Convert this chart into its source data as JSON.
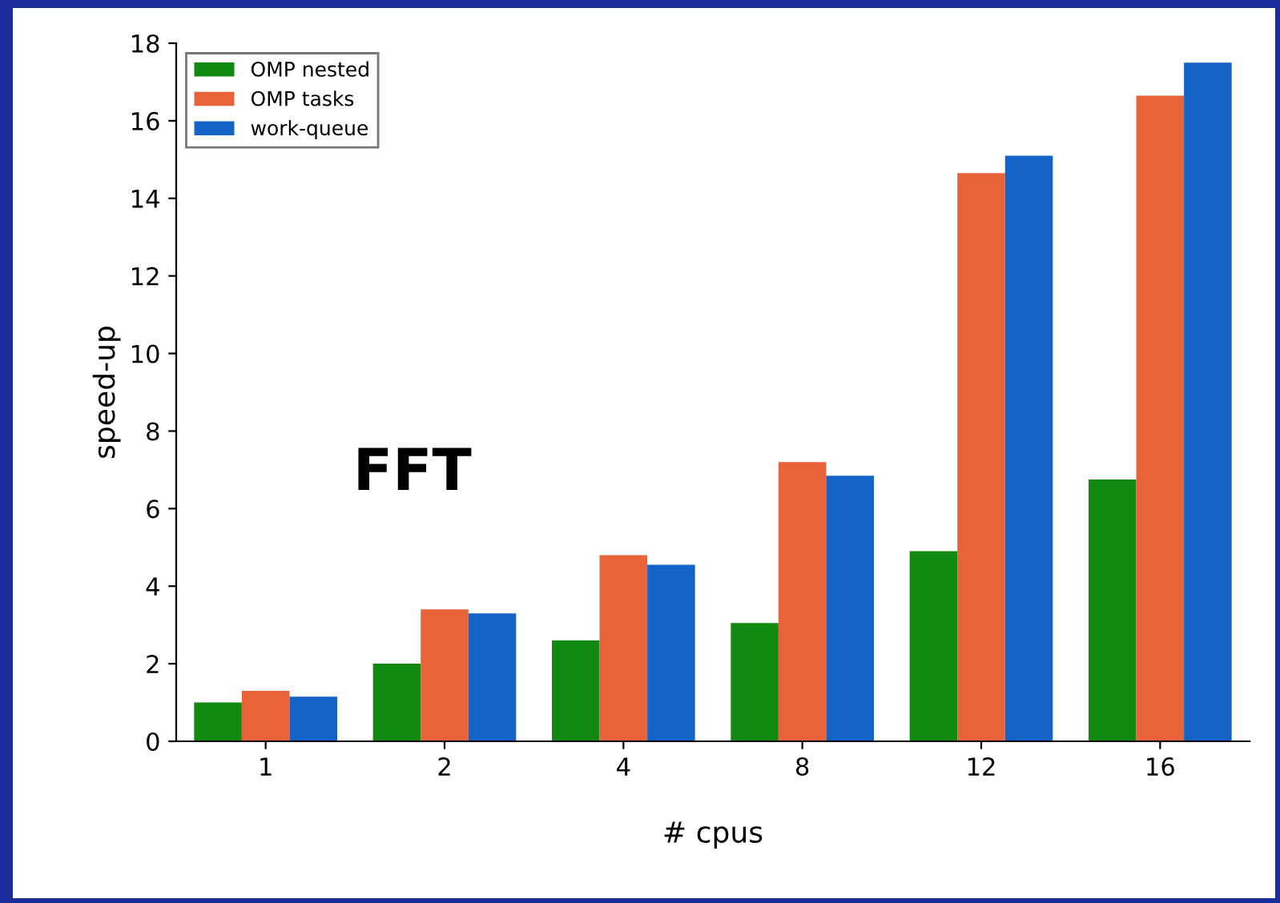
{
  "chart_data": {
    "type": "bar",
    "ylabel": "speed-up",
    "xlabel": "# cpus",
    "categories": [
      "1",
      "2",
      "4",
      "8",
      "12",
      "16"
    ],
    "series": [
      {
        "name": "OMP nested",
        "color": "#128a12",
        "values": [
          1.0,
          2.0,
          2.6,
          3.05,
          4.9,
          6.75
        ]
      },
      {
        "name": "OMP tasks",
        "color": "#e8623a",
        "values": [
          1.3,
          3.4,
          4.8,
          7.2,
          14.65,
          16.65
        ]
      },
      {
        "name": "work-queue",
        "color": "#1464c8",
        "values": [
          1.15,
          3.3,
          4.55,
          6.85,
          15.1,
          17.5
        ]
      }
    ],
    "ylim": [
      0,
      18
    ],
    "yticks": [
      0,
      2,
      4,
      6,
      8,
      10,
      12,
      14,
      16,
      18
    ],
    "annotations": [
      "FFT"
    ],
    "legend": "top left",
    "grid": false
  }
}
